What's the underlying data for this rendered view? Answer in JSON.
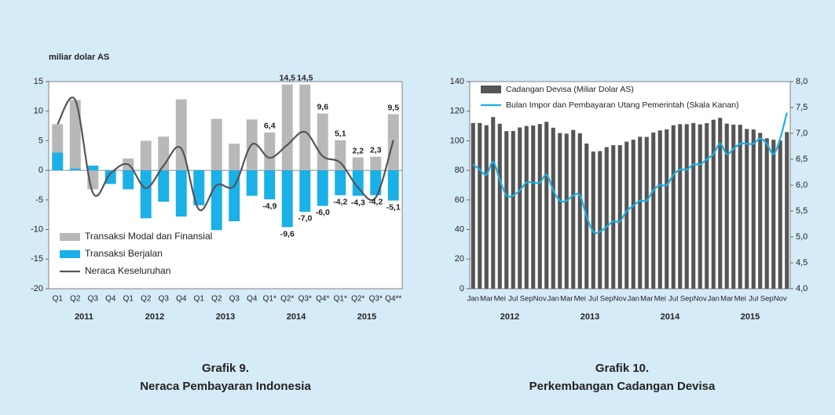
{
  "chart_data": [
    {
      "type": "bar",
      "title": "Grafik 9.",
      "subtitle": "Neraca Pembayaran Indonesia",
      "y_label": "miliar dolar AS",
      "categories": [
        "Q1",
        "Q2",
        "Q3",
        "Q4",
        "Q1",
        "Q2",
        "Q3",
        "Q4",
        "Q1",
        "Q2",
        "Q3",
        "Q4",
        "Q1*",
        "Q2*",
        "Q3*",
        "Q4*",
        "Q1*",
        "Q2*",
        "Q3*",
        "Q4**"
      ],
      "category_groups": [
        "2011",
        "2012",
        "2013",
        "2014",
        "2015"
      ],
      "ylim": [
        -20,
        15
      ],
      "yticks": [
        15,
        10,
        5,
        0,
        -5,
        -10,
        -15,
        -20
      ],
      "legend": "lower left",
      "series": [
        {
          "name": "Transaksi Modal dan Finansial",
          "type": "bar",
          "color": "#b8b8b8",
          "values": [
            7.8,
            11.9,
            -3.2,
            -0.4,
            2.0,
            5.0,
            5.7,
            12.0,
            0,
            8.7,
            4.5,
            8.6,
            6.4,
            14.5,
            14.5,
            9.6,
            5.1,
            2.2,
            2.3,
            9.5
          ],
          "value_labels": [
            null,
            null,
            null,
            null,
            null,
            null,
            null,
            null,
            null,
            null,
            null,
            null,
            "6,4",
            "14,5",
            "14,5",
            "9,6",
            "5,1",
            "2,2",
            "2,3",
            "9,5"
          ]
        },
        {
          "name": "Transaksi Berjalan",
          "type": "bar",
          "color": "#1ab0e8",
          "values": [
            3.0,
            0.3,
            0.8,
            -2.3,
            -3.2,
            -8.1,
            -5.3,
            -7.8,
            -5.9,
            -10.1,
            -8.6,
            -4.3,
            -4.9,
            -9.6,
            -7.0,
            -6.0,
            -4.2,
            -4.3,
            -4.2,
            -5.1
          ],
          "value_labels": [
            null,
            null,
            null,
            null,
            null,
            null,
            null,
            null,
            null,
            null,
            null,
            null,
            "-4,9",
            "-9,6",
            "-7,0",
            "-6,0",
            "-4,2",
            "-4,3",
            "-4,2",
            "-5,1"
          ]
        },
        {
          "name": "Neraca Keseluruhan",
          "type": "line",
          "color": "#555555",
          "values": [
            7.8,
            11.9,
            -3.8,
            -0.5,
            1.0,
            -3.0,
            0.8,
            3.7,
            -6.6,
            -2.5,
            -2.6,
            4.4,
            2.1,
            4.3,
            6.5,
            2.4,
            1.3,
            -2.9,
            -4.6,
            5.1
          ]
        }
      ]
    },
    {
      "type": "bar",
      "title": "Grafik 10.",
      "subtitle": "Perkembangan Cadangan Devisa",
      "categories": [
        "Jan",
        null,
        "Mar",
        null,
        "Mei",
        null,
        "Jul",
        null,
        "Sep",
        null,
        "Nov",
        null,
        "Jan",
        null,
        "Mar",
        null,
        "Mei",
        null,
        "Jul",
        null,
        "Sep",
        null,
        "Nov",
        null,
        "Jan",
        null,
        "Mar",
        null,
        "Mei",
        null,
        "Jul",
        null,
        "Sep",
        null,
        "Nov",
        null,
        "Jan",
        null,
        "Mar",
        null,
        "Mei",
        null,
        "Jul",
        null,
        "Sep",
        null,
        "Nov",
        null
      ],
      "category_groups": [
        "2012",
        "2013",
        "2014",
        "2015"
      ],
      "ylim": [
        0,
        140
      ],
      "yticks": [
        0,
        20,
        40,
        60,
        80,
        100,
        120,
        140
      ],
      "y2lim": [
        4,
        8
      ],
      "y2ticks": [
        {
          "value": 4,
          "label": "4,0"
        },
        {
          "value": 4.5,
          "label": "4,5"
        },
        {
          "value": 5,
          "label": "5,0"
        },
        {
          "value": 5.5,
          "label": "5,5"
        },
        {
          "value": 6,
          "label": "6,0"
        },
        {
          "value": 6.5,
          "label": "6,5"
        },
        {
          "value": 7,
          "label": "7,0"
        },
        {
          "value": 7.5,
          "label": "7,5"
        },
        {
          "value": 8,
          "label": "8,0"
        }
      ],
      "legend": "upper left",
      "series": [
        {
          "name": "Cadangan Devisa (Miliar Dolar AS)",
          "type": "bar",
          "color": "#555555",
          "values": [
            112,
            112,
            110.5,
            116,
            111.5,
            106.5,
            106.6,
            109,
            110,
            110.3,
            111.3,
            112.8,
            108.8,
            105.2,
            104.8,
            107.3,
            105.1,
            98.1,
            92.7,
            93,
            95.7,
            97,
            97,
            99.4,
            100.7,
            102.7,
            102.6,
            105.6,
            107,
            107.7,
            110.5,
            111.2,
            111.2,
            112,
            111.1,
            111.9,
            114.2,
            115.5,
            111.6,
            110.9,
            110.8,
            108,
            107.6,
            105.3,
            101.7,
            100.7,
            100.2,
            105.9
          ]
        },
        {
          "name": "Bulan Impor dan Pembayaran Utang Pemerintah (Skala Kanan)",
          "type": "line",
          "axis": "y2",
          "color": "#1ab0e8",
          "values": [
            6.4,
            6.3,
            6.2,
            6.45,
            6.1,
            5.8,
            5.8,
            5.9,
            6.05,
            6.05,
            6.05,
            6.2,
            5.9,
            5.7,
            5.7,
            5.8,
            5.8,
            5.4,
            5.1,
            5.1,
            5.2,
            5.3,
            5.3,
            5.5,
            5.6,
            5.7,
            5.7,
            5.9,
            6.0,
            6.0,
            6.2,
            6.3,
            6.3,
            6.4,
            6.4,
            6.5,
            6.6,
            6.8,
            6.6,
            6.7,
            6.8,
            6.8,
            6.8,
            6.9,
            6.8,
            6.6,
            6.9,
            7.4
          ]
        }
      ]
    }
  ]
}
